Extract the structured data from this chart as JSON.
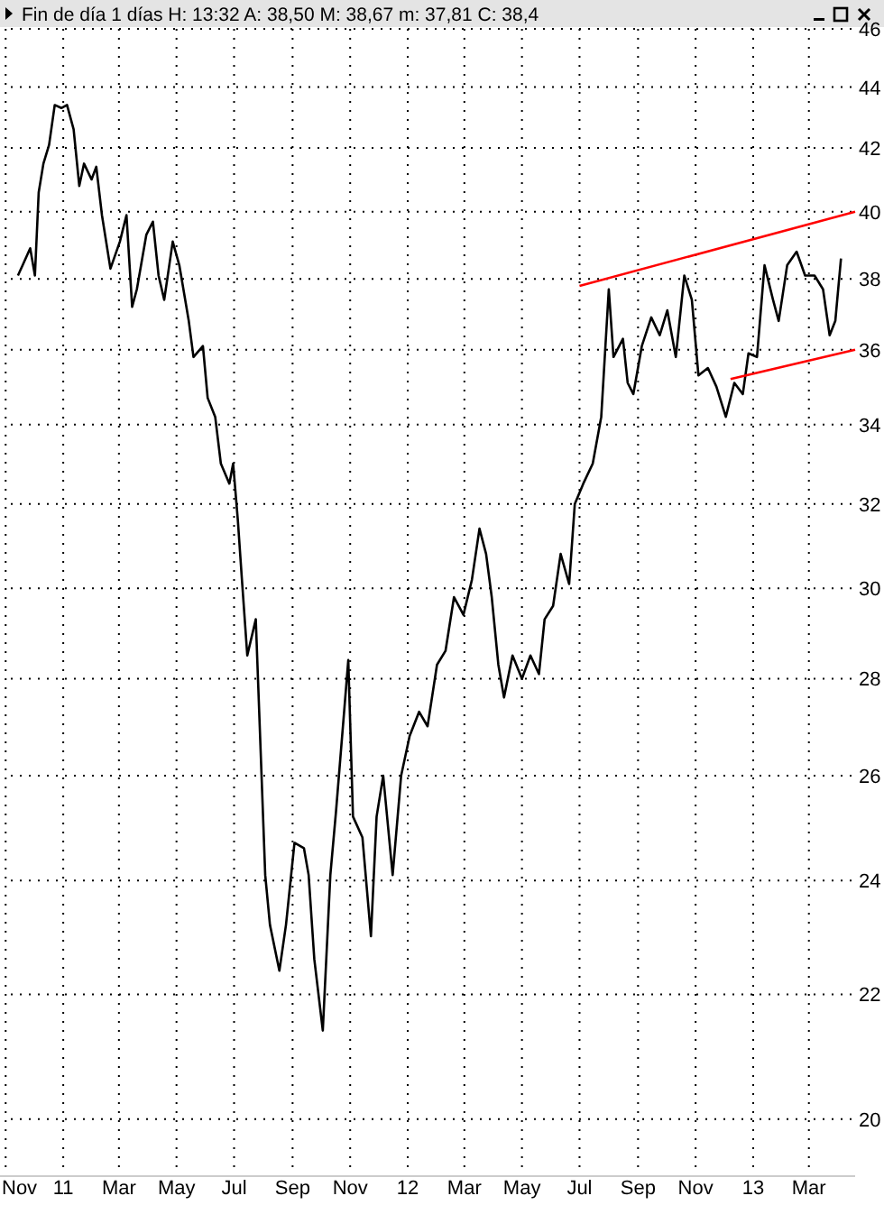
{
  "chart_data": {
    "type": "line",
    "title": "Fin de día 1 días  H: 13:32  A: 38,50  M: 38,67  m: 37,81  C: 38,4",
    "log": "y",
    "grid": true,
    "xlim": [
      "2010-10-26",
      "2013-04-19"
    ],
    "ylim": [
      19.2,
      46
    ],
    "xticks": [
      {
        "value": "2010-11-01",
        "label": "Nov"
      },
      {
        "value": "2011-01-01",
        "label": "11"
      },
      {
        "value": "2011-03-01",
        "label": "Mar"
      },
      {
        "value": "2011-05-01",
        "label": "May"
      },
      {
        "value": "2011-07-01",
        "label": "Jul"
      },
      {
        "value": "2011-09-01",
        "label": "Sep"
      },
      {
        "value": "2011-11-01",
        "label": "Nov"
      },
      {
        "value": "2012-01-01",
        "label": "12"
      },
      {
        "value": "2012-03-01",
        "label": "Mar"
      },
      {
        "value": "2012-05-01",
        "label": "May"
      },
      {
        "value": "2012-07-01",
        "label": "Jul"
      },
      {
        "value": "2012-09-01",
        "label": "Sep"
      },
      {
        "value": "2012-11-01",
        "label": "Nov"
      },
      {
        "value": "2013-01-01",
        "label": "13"
      },
      {
        "value": "2013-03-01",
        "label": "Mar"
      }
    ],
    "yticks": [
      20,
      22,
      24,
      26,
      28,
      30,
      32,
      34,
      36,
      38,
      40,
      42,
      44,
      46
    ],
    "series": [
      {
        "color": "#000000",
        "x": [
          "2010-11-14",
          "2010-11-19",
          "2010-11-27",
          "2010-12-02",
          "2010-12-06",
          "2010-12-11",
          "2010-12-17",
          "2010-12-23",
          "2010-12-30",
          "2011-01-05",
          "2011-01-12",
          "2011-01-18",
          "2011-01-23",
          "2011-01-31",
          "2011-02-05",
          "2011-02-11",
          "2011-02-20",
          "2011-03-02",
          "2011-03-09",
          "2011-03-15",
          "2011-03-20",
          "2011-03-30",
          "2011-04-06",
          "2011-04-12",
          "2011-04-18",
          "2011-04-27",
          "2011-05-04",
          "2011-05-14",
          "2011-05-19",
          "2011-05-29",
          "2011-06-03",
          "2011-06-11",
          "2011-06-17",
          "2011-06-26",
          "2011-06-30",
          "2011-07-05",
          "2011-07-09",
          "2011-07-15",
          "2011-07-24",
          "2011-08-03",
          "2011-08-08",
          "2011-08-18",
          "2011-08-25",
          "2011-09-03",
          "2011-09-13",
          "2011-09-18",
          "2011-09-24",
          "2011-10-03",
          "2011-10-11",
          "2011-10-17",
          "2011-10-26",
          "2011-10-30",
          "2011-11-04",
          "2011-11-14",
          "2011-11-23",
          "2011-11-29",
          "2011-12-06",
          "2011-12-16",
          "2011-12-25",
          "2012-01-03",
          "2012-01-13",
          "2012-01-22",
          "2012-02-01",
          "2012-02-10",
          "2012-02-19",
          "2012-02-29",
          "2012-03-09",
          "2012-03-17",
          "2012-03-24",
          "2012-03-30",
          "2012-04-06",
          "2012-04-12",
          "2012-04-21",
          "2012-05-01",
          "2012-05-10",
          "2012-05-19",
          "2012-05-25",
          "2012-06-03",
          "2012-06-11",
          "2012-06-20",
          "2012-06-26",
          "2012-07-05",
          "2012-07-15",
          "2012-07-24",
          "2012-08-01",
          "2012-08-06",
          "2012-08-16",
          "2012-08-21",
          "2012-08-27",
          "2012-09-05",
          "2012-09-15",
          "2012-09-24",
          "2012-10-02",
          "2012-10-11",
          "2012-10-20",
          "2012-10-28",
          "2012-11-04",
          "2012-11-14",
          "2012-11-23",
          "2012-12-03",
          "2012-12-12",
          "2012-12-21",
          "2012-12-27",
          "2013-01-05",
          "2013-01-13",
          "2013-01-22",
          "2013-01-28",
          "2013-02-06",
          "2013-02-16",
          "2013-02-25",
          "2013-03-07",
          "2013-03-16",
          "2013-03-23",
          "2013-03-29",
          "2013-04-04"
        ],
        "values": [
          38.1,
          38.4,
          38.9,
          38.1,
          40.6,
          41.5,
          42.1,
          43.4,
          43.3,
          43.4,
          42.6,
          40.8,
          41.5,
          41.0,
          41.4,
          39.9,
          38.3,
          39.1,
          39.9,
          37.2,
          37.7,
          39.3,
          39.7,
          38.1,
          37.4,
          39.1,
          38.4,
          36.8,
          35.8,
          36.1,
          34.7,
          34.2,
          33.0,
          32.5,
          33.0,
          31.6,
          30.3,
          28.5,
          29.3,
          24.1,
          23.2,
          22.4,
          23.2,
          24.7,
          24.6,
          24.1,
          22.6,
          21.4,
          24.1,
          25.3,
          27.4,
          28.4,
          25.2,
          24.8,
          23.0,
          25.2,
          26.0,
          24.1,
          26.0,
          26.8,
          27.3,
          27.0,
          28.3,
          28.6,
          29.8,
          29.4,
          30.2,
          31.4,
          30.8,
          29.8,
          28.3,
          27.6,
          28.5,
          28.0,
          28.5,
          28.1,
          29.3,
          29.6,
          30.8,
          30.1,
          32.0,
          32.5,
          33.0,
          34.2,
          37.7,
          35.8,
          36.3,
          35.1,
          34.8,
          36.1,
          36.9,
          36.4,
          37.1,
          35.8,
          38.1,
          37.4,
          35.3,
          35.5,
          35.0,
          34.2,
          35.1,
          34.8,
          35.9,
          35.8,
          38.4,
          37.4,
          36.8,
          38.4,
          38.8,
          38.1,
          38.1,
          37.7,
          36.4,
          36.8,
          38.6
        ]
      },
      {
        "color": "#ff0000",
        "x": [
          "2012-07-01",
          "2013-04-19"
        ],
        "values": [
          37.8,
          40.0
        ]
      },
      {
        "color": "#ff0000",
        "x": [
          "2012-12-08",
          "2013-04-19"
        ],
        "values": [
          35.2,
          36.0
        ]
      }
    ]
  }
}
